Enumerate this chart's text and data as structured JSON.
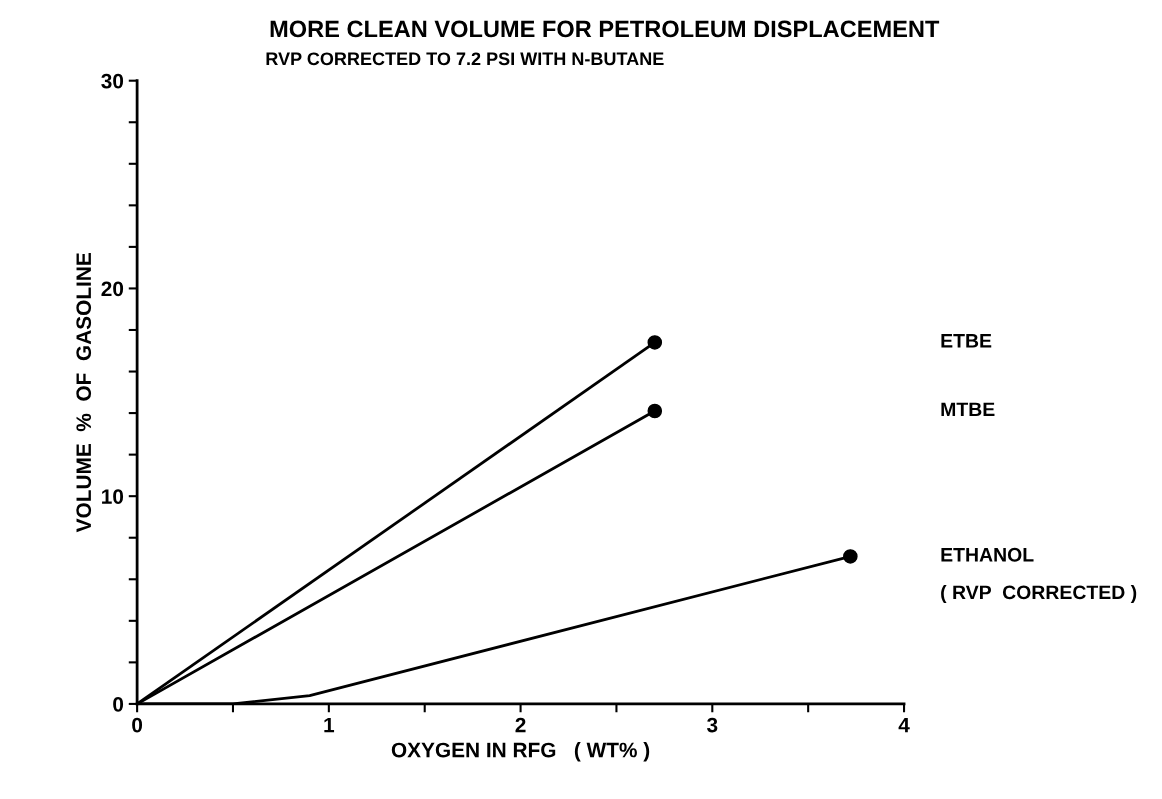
{
  "chart_data": {
    "type": "line",
    "title": "MORE CLEAN VOLUME FOR PETROLEUM DISPLACEMENT",
    "subtitle": "RVP CORRECTED TO 7.2 PSI WITH N-BUTANE",
    "xlabel": "OXYGEN IN RFG   ( WT% )",
    "ylabel": "VOLUME  %  OF  GASOLINE",
    "series": [
      {
        "name": "ETBE",
        "color": "#000000",
        "x": [
          0,
          2.7
        ],
        "values": [
          0,
          17.4
        ]
      },
      {
        "name": "MTBE",
        "color": "#000000",
        "x": [
          0,
          2.7
        ],
        "values": [
          0,
          14.1
        ]
      },
      {
        "name": "ETHANOL",
        "color": "#000000",
        "x": [
          0,
          0.5,
          0.9,
          3.72
        ],
        "values": [
          0,
          0,
          0.4,
          7.1
        ]
      },
      {
        "type": "scatter",
        "marker": "circle",
        "color": "#000000",
        "x": [
          2.7,
          2.7,
          3.72
        ],
        "values": [
          17.4,
          14.1,
          7.1
        ]
      }
    ],
    "annotations": [
      "( RVP  CORRECTED )"
    ],
    "xlim": [
      0,
      4
    ],
    "xticks": [
      0,
      {
        "value": 0.5,
        "label": null
      },
      1,
      {
        "value": 1.5,
        "label": null
      },
      2,
      {
        "value": 2.5,
        "label": null
      },
      3,
      {
        "value": 3.5,
        "label": null
      },
      4
    ],
    "ylim": [
      0,
      30
    ],
    "yticks": [
      0,
      {
        "value": 2,
        "label": null
      },
      {
        "value": 4,
        "label": null
      },
      {
        "value": 6,
        "label": null
      },
      {
        "value": 8,
        "label": null
      },
      10,
      {
        "value": 12,
        "label": null
      },
      {
        "value": 14,
        "label": null
      },
      {
        "value": 16,
        "label": null
      },
      {
        "value": 18,
        "label": null
      },
      20,
      {
        "value": 22,
        "label": null
      },
      {
        "value": 24,
        "label": null
      },
      {
        "value": 26,
        "label": null
      },
      {
        "value": 28,
        "label": null
      },
      30
    ],
    "grid": false,
    "line_style": "solid"
  }
}
